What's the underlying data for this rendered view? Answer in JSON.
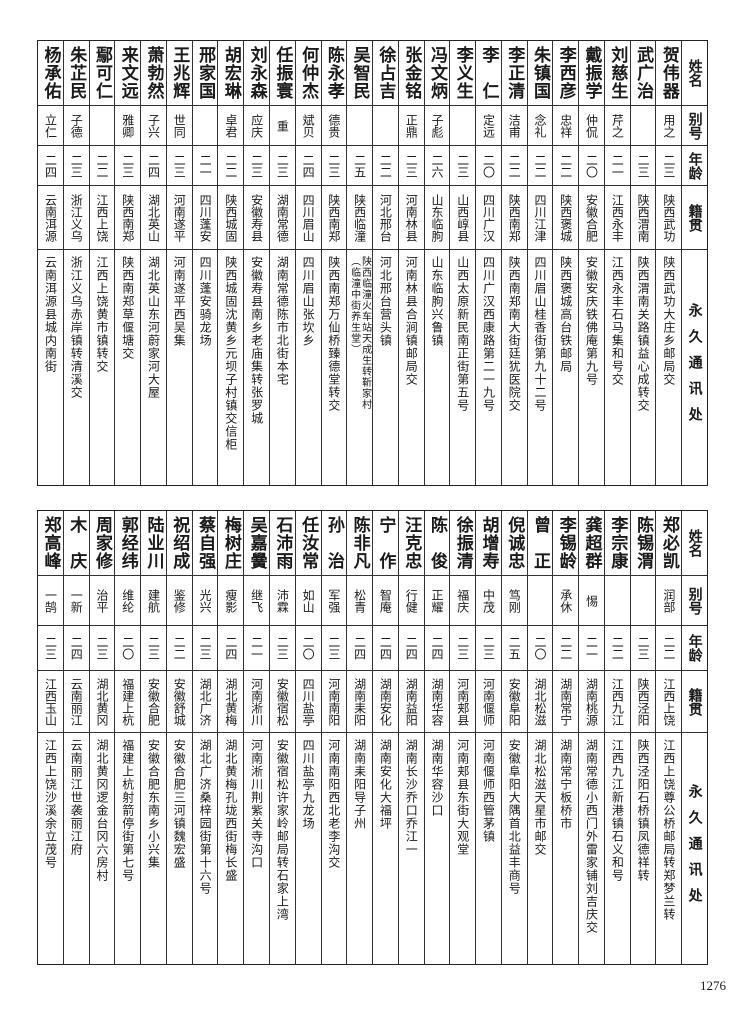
{
  "headers": {
    "name": "姓名",
    "alias": "别号",
    "age": "年龄",
    "origin": "籍贯",
    "address": "永久通讯处"
  },
  "tables": [
    {
      "rows": [
        {
          "name": "贺伟器",
          "alias": "用之",
          "age": "二三",
          "origin": "陕西武功",
          "address": "陕西武功大庄乡邮局交"
        },
        {
          "name": "武广治",
          "alias": "",
          "age": "二三",
          "origin": "陕西渭南",
          "address": "陕西渭南关路镇益心成转交"
        },
        {
          "name": "刘慈生",
          "alias": "芹之",
          "age": "二一",
          "origin": "江西永丰",
          "address": "江西永丰石马集和号交"
        },
        {
          "name": "戴振学",
          "alias": "仲侃",
          "age": "二〇",
          "origin": "安徽合肥",
          "address": "安徽安庆铁佛庵第九号"
        },
        {
          "name": "李西彦",
          "alias": "忠祥",
          "age": "二二",
          "origin": "陕西褒城",
          "address": "陕西褒城高台铁邮局"
        },
        {
          "name": "朱镇国",
          "alias": "念礼",
          "age": "二二",
          "origin": "四川江津",
          "address": "四川眉山桂香街第九十二号"
        },
        {
          "name": "李正清",
          "alias": "洁甫",
          "age": "二二",
          "origin": "陕西南郑",
          "address": "陕西南郑南大街廷犹医院交"
        },
        {
          "name": "李　仁",
          "alias": "定远",
          "age": "二〇",
          "origin": "四川广汉",
          "address": "四川广汉西康路第二一九号"
        },
        {
          "name": "李义生",
          "alias": "",
          "age": "二三",
          "origin": "山西崞县",
          "address": "山西太原新民南正街第五号"
        },
        {
          "name": "冯文炳",
          "alias": "子彪",
          "age": "二六",
          "origin": "山东临朐",
          "address": "山东临朐兴鲁镇"
        },
        {
          "name": "张金铭",
          "alias": "正鼎",
          "age": "二三",
          "origin": "河南林县",
          "address": "河南林县合涧镇邮局交"
        },
        {
          "name": "徐占吉",
          "alias": "",
          "age": "二二",
          "origin": "河北邢台",
          "address": "河北邢台营头镇"
        },
        {
          "name": "吴智民",
          "alias": "",
          "age": "二五",
          "origin": "陕西临潼",
          "address": "陕西临潼火车站天成生转靳家村",
          "address_note": "（临潼中街养生堂）"
        },
        {
          "name": "陈永孝",
          "alias": "德贵",
          "age": "二三",
          "origin": "陕西南郑",
          "address": "陕西南郑万仙桥臻德堂转交"
        },
        {
          "name": "何仲杰",
          "alias": "斌贝",
          "age": "二四",
          "origin": "四川眉山",
          "address": "四川眉山张坎乡"
        },
        {
          "name": "任振寰",
          "alias": "重",
          "age": "二三",
          "origin": "湖南常德",
          "address": "湖南常德陈市北街本宅"
        },
        {
          "name": "刘永森",
          "alias": "应庆",
          "age": "二三",
          "origin": "安徽寿县",
          "address": "安徽寿县南乡老庙集转张罗城"
        },
        {
          "name": "胡宏琳",
          "alias": "卓君",
          "age": "二二",
          "origin": "陕西城固",
          "address": "陕西城固沈黄乡元坝子村镇交信柜"
        },
        {
          "name": "邢家国",
          "alias": "",
          "age": "二一",
          "origin": "四川蓬安",
          "address": "四川蓬安骑龙场"
        },
        {
          "name": "王兆辉",
          "alias": "世同",
          "age": "二三",
          "origin": "河南遂平",
          "address": "河南遂平西吴集"
        },
        {
          "name": "萧勃然",
          "alias": "子兴",
          "age": "二四",
          "origin": "湖北英山",
          "address": "湖北英山东河蔚家河大屋"
        },
        {
          "name": "来文远",
          "alias": "雅卿",
          "age": "二三",
          "origin": "陕西南郑",
          "address": "陕西南郑草偃塘交"
        },
        {
          "name": "鄢可仁",
          "alias": "",
          "age": "二二",
          "origin": "江西上饶",
          "address": "江西上饶黄市镇转交"
        },
        {
          "name": "朱芷民",
          "alias": "子德",
          "age": "二三",
          "origin": "浙江义乌",
          "address": "浙江义乌赤岸镇转清溪交"
        },
        {
          "name": "杨承佑",
          "alias": "立仁",
          "age": "二四",
          "origin": "云南洱源",
          "address": "云南洱源县城内南街"
        }
      ]
    },
    {
      "rows": [
        {
          "name": "郑必凯",
          "alias": "润部",
          "age": "二二",
          "origin": "江西上饶",
          "address": "江西上饶尊公桥邮局转郑梦兰转"
        },
        {
          "name": "陈锡渭",
          "alias": "",
          "age": "二三",
          "origin": "陕西泾阳",
          "address": "陕西泾阳石桥镇凤德祥转"
        },
        {
          "name": "李宗康",
          "alias": "",
          "age": "二二",
          "origin": "江西九江",
          "address": "江西九江新港镇石义和号"
        },
        {
          "name": "龚超群",
          "alias": "惕",
          "age": "二一",
          "origin": "湖南桃源",
          "address": "湖南常德小西门外雷家铺刘吉庆交"
        },
        {
          "name": "李锡龄",
          "alias": "承休",
          "age": "二二",
          "origin": "湖南常宁",
          "address": "湖南常宁板桥市"
        },
        {
          "name": "曾　正",
          "alias": "",
          "age": "二〇",
          "origin": "湖北松滋",
          "address": "湖北松滋天星市邮交"
        },
        {
          "name": "倪诚忠",
          "alias": "笃刚",
          "age": "二五",
          "origin": "安徽阜阳",
          "address": "安徽阜阳大隅首北益丰商号"
        },
        {
          "name": "胡增寿",
          "alias": "中茂",
          "age": "二三",
          "origin": "河南偃师",
          "address": "河南偃师西管茅镇"
        },
        {
          "name": "徐振清",
          "alias": "福庆",
          "age": "二三",
          "origin": "河南郏县",
          "address": "河南郏县东街大观堂"
        },
        {
          "name": "陈　俊",
          "alias": "正耀",
          "age": "二四",
          "origin": "湖南华容",
          "address": "湖南华容沙口"
        },
        {
          "name": "汪克忠",
          "alias": "行健",
          "age": "二四",
          "origin": "湖南益阳",
          "address": "湖南长沙乔口乔江一"
        },
        {
          "name": "宁　作",
          "alias": "智庵",
          "age": "二四",
          "origin": "湖南安化",
          "address": "湖南安化大福坪"
        },
        {
          "name": "陈非凡",
          "alias": "松青",
          "age": "二四",
          "origin": "湖南耒阳",
          "address": "湖南耒阳导子州"
        },
        {
          "name": "孙　治",
          "alias": "军强",
          "age": "二三",
          "origin": "河南南阳",
          "address": "河南南阳西北老李沟交"
        },
        {
          "name": "任汝常",
          "alias": "如山",
          "age": "二〇",
          "origin": "四川盐亭",
          "address": "四川盐亭九龙场"
        },
        {
          "name": "石沛雨",
          "alias": "沛霖",
          "age": "二三",
          "origin": "安徽宿松",
          "address": "安徽宿松许家岭邮局转石家上湾"
        },
        {
          "name": "吴嘉黌",
          "alias": "继飞",
          "age": "二一",
          "origin": "河南淅川",
          "address": "河南淅川荆紫关寺沟口"
        },
        {
          "name": "梅树庄",
          "alias": "瘦影",
          "age": "二四",
          "origin": "湖北黄梅",
          "address": "湖北黄梅孔垅西街梅长盛"
        },
        {
          "name": "蔡自强",
          "alias": "光兴",
          "age": "二三",
          "origin": "湖北广济",
          "address": "湖北广济桑梓园街第十六号"
        },
        {
          "name": "祝绍成",
          "alias": "鉴修",
          "age": "二二",
          "origin": "安徽舒城",
          "address": "安徽合肥三河镇魏宏盛"
        },
        {
          "name": "陆业川",
          "alias": "建航",
          "age": "二三",
          "origin": "安徽合肥",
          "address": "安徽合肥东南乡小兴集"
        },
        {
          "name": "郭经纬",
          "alias": "维纶",
          "age": "二〇",
          "origin": "福建上杭",
          "address": "福建上杭射箭停街第七号"
        },
        {
          "name": "周家修",
          "alias": "治平",
          "age": "二三",
          "origin": "湖北黄冈",
          "address": "湖北黄冈逻金台冈六房村"
        },
        {
          "name": "木　庆",
          "alias": "一新",
          "age": "二四",
          "origin": "云南丽江",
          "address": "云南丽江世袭丽江府"
        },
        {
          "name": "郑高峰",
          "alias": "一鹄",
          "age": "二三",
          "origin": "江西玉山",
          "address": "江西上饶沙溪余立茂号"
        }
      ]
    }
  ],
  "page_number": "1276"
}
